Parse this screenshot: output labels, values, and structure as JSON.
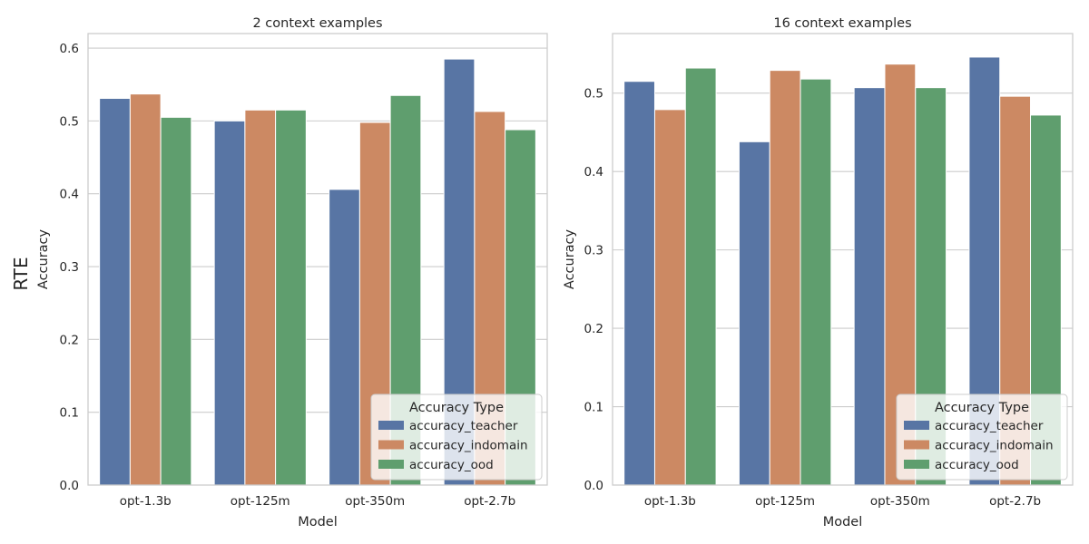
{
  "figure": {
    "row_label": "RTE"
  },
  "chart_data": [
    {
      "type": "bar",
      "title": "2 context examples",
      "xlabel": "Model",
      "ylabel": "Accuracy",
      "categories": [
        "opt-1.3b",
        "opt-125m",
        "opt-350m",
        "opt-2.7b"
      ],
      "ylim": [
        0,
        0.62
      ],
      "yticks": [
        0.0,
        0.1,
        0.2,
        0.3,
        0.4,
        0.5,
        0.6
      ],
      "grid": "horizontal",
      "legend": {
        "title": "Accuracy Type",
        "placement": "lower-right"
      },
      "series": [
        {
          "name": "accuracy_teacher",
          "color": "#5875a4",
          "values": [
            0.531,
            0.5,
            0.406,
            0.585
          ]
        },
        {
          "name": "accuracy_indomain",
          "color": "#cc8963",
          "values": [
            0.537,
            0.515,
            0.498,
            0.513
          ]
        },
        {
          "name": "accuracy_ood",
          "color": "#5f9e6e",
          "values": [
            0.505,
            0.515,
            0.535,
            0.488
          ]
        }
      ]
    },
    {
      "type": "bar",
      "title": "16 context examples",
      "xlabel": "Model",
      "ylabel": "Accuracy",
      "categories": [
        "opt-1.3b",
        "opt-125m",
        "opt-350m",
        "opt-2.7b"
      ],
      "ylim": [
        0,
        0.576
      ],
      "yticks": [
        0.0,
        0.1,
        0.2,
        0.3,
        0.4,
        0.5
      ],
      "grid": "horizontal",
      "legend": {
        "title": "Accuracy Type",
        "placement": "lower-right"
      },
      "series": [
        {
          "name": "accuracy_teacher",
          "color": "#5875a4",
          "values": [
            0.515,
            0.438,
            0.507,
            0.546
          ]
        },
        {
          "name": "accuracy_indomain",
          "color": "#cc8963",
          "values": [
            0.479,
            0.529,
            0.537,
            0.496
          ]
        },
        {
          "name": "accuracy_ood",
          "color": "#5f9e6e",
          "values": [
            0.532,
            0.518,
            0.507,
            0.472
          ]
        }
      ]
    }
  ]
}
